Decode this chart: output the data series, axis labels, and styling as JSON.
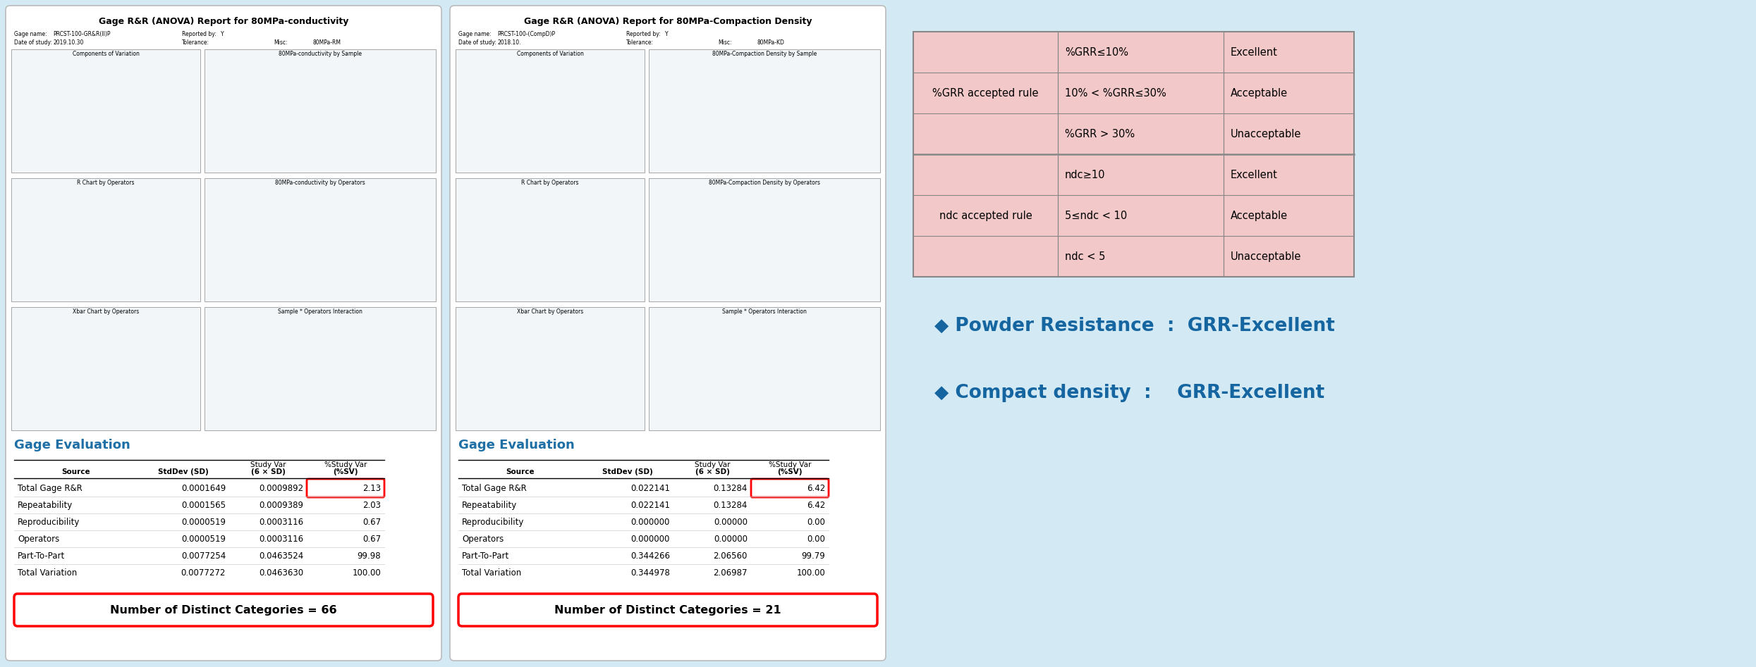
{
  "bg_color": "#d3eaf5",
  "panel_bg": "#ffffff",
  "table_bg": "#f2c8c8",
  "title1": "Gage R&R (ANOVA) Report for 80MPa-conductivity",
  "title2": "Gage R&R (ANOVA) Report for 80MPa-Compaction Density",
  "gage_eval_color": "#1e6fa5",
  "gage_eval_title1": "Gage Evaluation",
  "gage_eval_title2": "Gage Evaluation",
  "table1_rows": [
    [
      "Total Gage R&R",
      "0.0001649",
      "0.0009892",
      "2.13"
    ],
    [
      "Repeatability",
      "0.0001565",
      "0.0009389",
      "2.03"
    ],
    [
      "Reproducibility",
      "0.0000519",
      "0.0003116",
      "0.67"
    ],
    [
      "Operators",
      "0.0000519",
      "0.0003116",
      "0.67"
    ],
    [
      "Part-To-Part",
      "0.0077254",
      "0.0463524",
      "99.98"
    ],
    [
      "Total Variation",
      "0.0077272",
      "0.0463630",
      "100.00"
    ]
  ],
  "table2_rows": [
    [
      "Total Gage R&R",
      "0.022141",
      "0.13284",
      "6.42"
    ],
    [
      "Repeatability",
      "0.022141",
      "0.13284",
      "6.42"
    ],
    [
      "Reproducibility",
      "0.000000",
      "0.00000",
      "0.00"
    ],
    [
      "Operators",
      "0.000000",
      "0.00000",
      "0.00"
    ],
    [
      "Part-To-Part",
      "0.344266",
      "2.06560",
      "99.79"
    ],
    [
      "Total Variation",
      "0.344978",
      "2.06987",
      "100.00"
    ]
  ],
  "ndc1": "Number of Distinct Categories = 66",
  "ndc2": "Number of Distinct Categories = 21",
  "grr_table_rows": [
    [
      "%GRR accepted rule",
      "%GRR≤10%",
      "Excellent"
    ],
    [
      "",
      "10% < %GRR≤30%",
      "Acceptable"
    ],
    [
      "",
      "%GRR > 30%",
      "Unacceptable"
    ],
    [
      "ndc accepted rule",
      "ndc≥10",
      "Excellent"
    ],
    [
      "",
      "5≤ndc < 10",
      "Acceptable"
    ],
    [
      "",
      "ndc < 5",
      "Unacceptable"
    ]
  ],
  "bullet_text1": "◆ Powder Resistance  :  GRR-Excellent",
  "bullet_text2": "◆ Compact density  :    GRR-Excellent",
  "bullet_color": "#1565a0",
  "panel1_info": [
    [
      "Gage name:",
      "PRCST-100-GR&R(II)P",
      "Reported by:",
      "Y"
    ],
    [
      "Date of study:",
      "2019.10.30",
      "Tolerance:",
      ""
    ],
    [
      "",
      "",
      "Misc:",
      "80MPa-RM"
    ]
  ],
  "panel2_info": [
    [
      "Gage name:",
      "PRCST-100-(CompD)P",
      "Reported by:",
      "Y"
    ],
    [
      "Date of study:",
      "2018.10.",
      "Tolerance:",
      ""
    ],
    [
      "",
      "",
      "Misc:",
      "80MPa-KD"
    ]
  ],
  "chart_labels_p1": [
    "Components of Variation",
    "80MPa-conductivity by Sample",
    "R Chart by Operators",
    "80MPa-conductivity by Operators",
    "Xbar Chart by Operators",
    "Sample * Operators Interaction"
  ],
  "chart_labels_p2": [
    "Components of Variation",
    "80MPa-Compaction Density by Sample",
    "R Chart by Operators",
    "80MPa-Compaction Density by Operators",
    "Xbar Chart by Operators",
    "Sample * Operators Interaction"
  ]
}
